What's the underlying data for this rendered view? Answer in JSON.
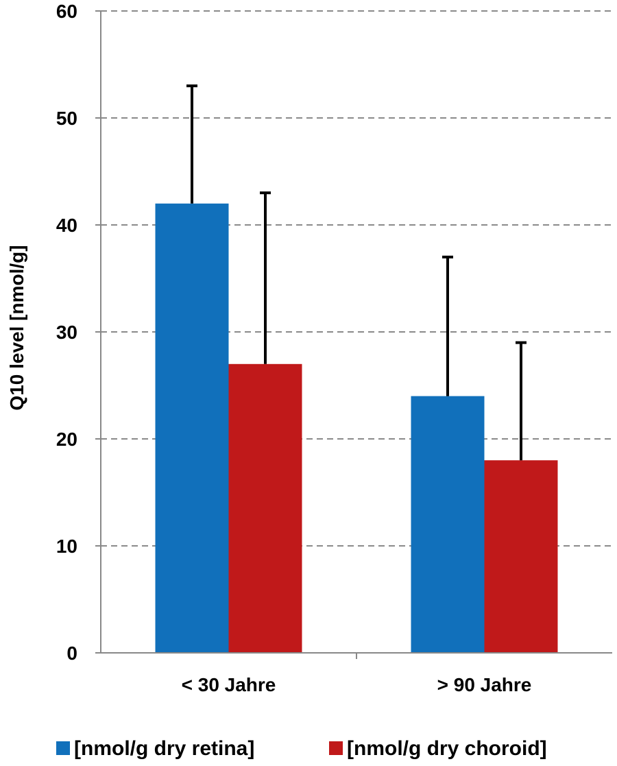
{
  "chart_data": {
    "type": "bar",
    "title": "",
    "xlabel": "",
    "ylabel": "Q10 level [nmol/g]",
    "ylim": [
      0,
      60
    ],
    "yticks": [
      0,
      10,
      20,
      30,
      40,
      50,
      60
    ],
    "grid": true,
    "legend_position": "bottom",
    "categories": [
      "< 30 Jahre",
      "> 90 Jahre"
    ],
    "series": [
      {
        "name": "[nmol/g dry retina]",
        "color": "#1170BB",
        "values": [
          42,
          24
        ],
        "error_upper": [
          11,
          13
        ]
      },
      {
        "name": "[nmol/g dry choroid]",
        "color": "#C0191A",
        "values": [
          27,
          18
        ],
        "error_upper": [
          16,
          11
        ]
      }
    ]
  }
}
